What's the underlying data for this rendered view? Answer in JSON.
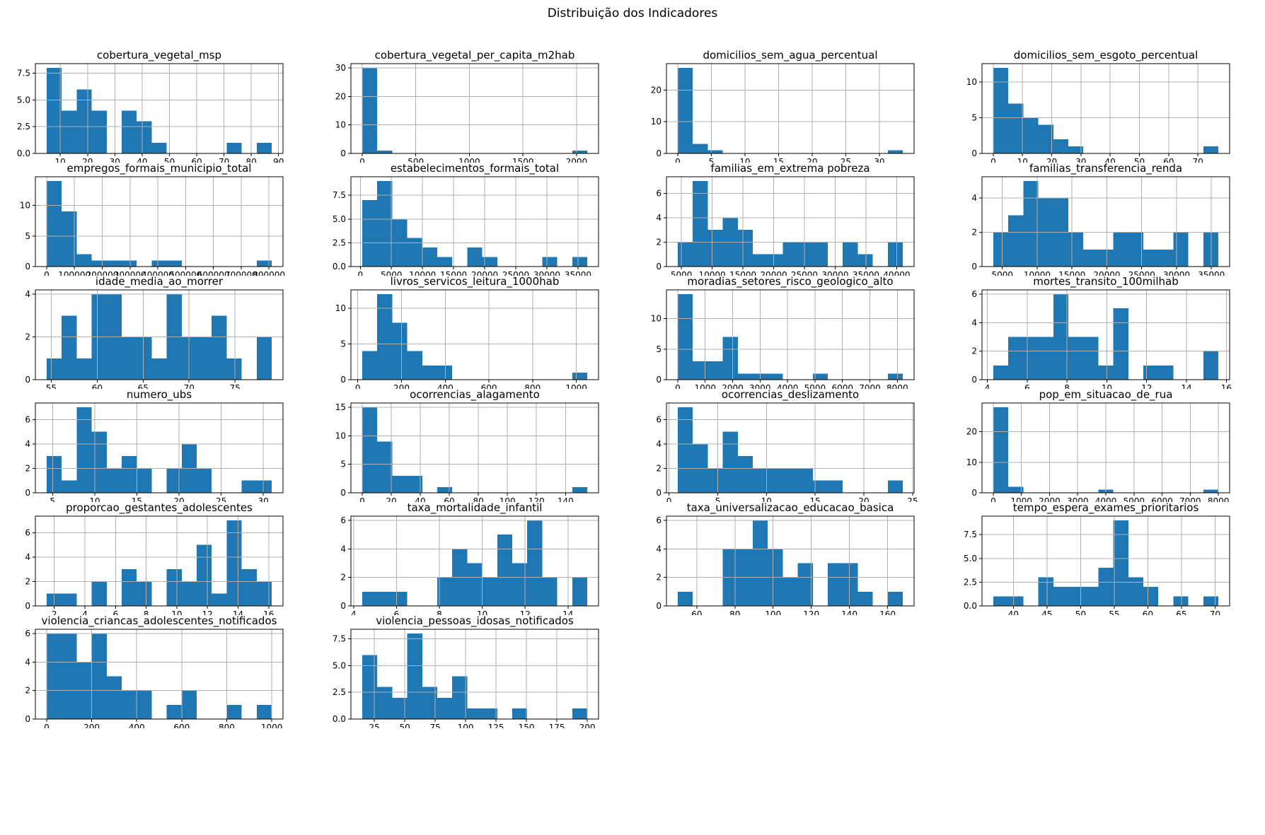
{
  "page": {
    "suptitle": "Distribuição dos Indicadores"
  },
  "style": {
    "bar_color": "#1f77b4",
    "grid_color": "#b0b0b0",
    "spine_color": "#000000"
  },
  "chart_data": [
    {
      "type": "histogram",
      "title": "cobertura_vegetal_msp",
      "x_start": 5,
      "x_end": 87.5,
      "heights": [
        8,
        4,
        6,
        4,
        0,
        4,
        3,
        1,
        0,
        0,
        0,
        0,
        1,
        0,
        1
      ],
      "xticks": [
        10,
        20,
        30,
        40,
        50,
        60,
        70,
        80,
        90
      ],
      "ytick_values": [
        0,
        2.5,
        5,
        7.5
      ],
      "ytick_labels": [
        "0.0",
        "2.5",
        "5.0",
        "7.5"
      ]
    },
    {
      "type": "histogram",
      "title": "cobertura_vegetal_per_capita_m2hab",
      "x_start": 0,
      "x_end": 2100,
      "heights": [
        30,
        1,
        0,
        0,
        0,
        0,
        0,
        0,
        0,
        0,
        0,
        0,
        0,
        0,
        1
      ],
      "xticks": [
        0,
        500,
        1000,
        1500,
        2000
      ],
      "ytick_values": [
        0,
        10,
        20,
        30
      ],
      "ytick_labels": [
        "0",
        "10",
        "20",
        "30"
      ]
    },
    {
      "type": "histogram",
      "title": "domicilios_sem_agua_percentual",
      "x_start": 0,
      "x_end": 33.5,
      "heights": [
        27,
        3,
        1,
        0,
        0,
        0,
        0,
        0,
        0,
        0,
        0,
        0,
        0,
        0,
        1
      ],
      "xticks": [
        0,
        5,
        10,
        15,
        20,
        25,
        30
      ],
      "ytick_values": [
        0,
        10,
        20
      ],
      "ytick_labels": [
        "0",
        "10",
        "20"
      ]
    },
    {
      "type": "histogram",
      "title": "domicilios_sem_esgoto_percentual",
      "x_start": 0,
      "x_end": 77,
      "heights": [
        12,
        7,
        5,
        4,
        2,
        1,
        0,
        0,
        0,
        0,
        0,
        0,
        0,
        0,
        1
      ],
      "xticks": [
        0,
        10,
        20,
        30,
        40,
        50,
        60,
        70
      ],
      "ytick_values": [
        0,
        5,
        10
      ],
      "ytick_labels": [
        "0",
        "5",
        "10"
      ]
    },
    {
      "type": "histogram",
      "title": "empregos_formais_municipio_total",
      "x_start": 0,
      "x_end": 810000,
      "heights": [
        14,
        9,
        2,
        1,
        1,
        1,
        0,
        1,
        1,
        0,
        0,
        0,
        0,
        0,
        1
      ],
      "xticks": [
        0,
        100000,
        200000,
        300000,
        400000,
        500000,
        600000,
        700000,
        800000
      ],
      "ytick_values": [
        0,
        5,
        10
      ],
      "ytick_labels": [
        "0",
        "5",
        "10"
      ]
    },
    {
      "type": "histogram",
      "title": "estabelecimentos_formais_total",
      "x_start": 300,
      "x_end": 36500,
      "heights": [
        7,
        9,
        5,
        3,
        2,
        1,
        0,
        2,
        1,
        0,
        0,
        0,
        1,
        0,
        1
      ],
      "xticks": [
        0,
        5000,
        10000,
        15000,
        20000,
        25000,
        30000,
        35000
      ],
      "ytick_values": [
        0,
        2.5,
        5,
        7.5
      ],
      "ytick_labels": [
        "0.0",
        "2.5",
        "5.0",
        "7.5"
      ]
    },
    {
      "type": "histogram",
      "title": "familias_em_extrema pobreza",
      "x_start": 4400,
      "x_end": 41000,
      "heights": [
        2,
        7,
        3,
        4,
        3,
        1,
        1,
        2,
        2,
        2,
        0,
        2,
        1,
        0,
        2
      ],
      "xticks": [
        5000,
        10000,
        15000,
        20000,
        25000,
        30000,
        35000,
        40000
      ],
      "ytick_values": [
        0,
        2,
        4,
        6
      ],
      "ytick_labels": [
        "0",
        "2",
        "4",
        "6"
      ]
    },
    {
      "type": "histogram",
      "title": "familias_transferencia_renda",
      "x_start": 3700,
      "x_end": 36000,
      "heights": [
        2,
        3,
        5,
        4,
        4,
        2,
        1,
        1,
        2,
        2,
        1,
        1,
        2,
        0,
        2
      ],
      "xticks": [
        5000,
        10000,
        15000,
        20000,
        25000,
        30000,
        35000
      ],
      "ytick_values": [
        0,
        2,
        4
      ],
      "ytick_labels": [
        "0",
        "2",
        "4"
      ]
    },
    {
      "type": "histogram",
      "title": "idade_media_ao_morrer",
      "x_start": 54.5,
      "x_end": 79,
      "heights": [
        1,
        3,
        1,
        4,
        4,
        2,
        2,
        1,
        4,
        2,
        2,
        3,
        1,
        0,
        2
      ],
      "xticks": [
        55,
        60,
        65,
        70,
        75
      ],
      "ytick_values": [
        0,
        2,
        4
      ],
      "ytick_labels": [
        "0",
        "2",
        "4"
      ]
    },
    {
      "type": "histogram",
      "title": "livros_servicos_leitura_1000hab",
      "x_start": 20,
      "x_end": 1050,
      "heights": [
        4,
        12,
        8,
        4,
        2,
        2,
        0,
        0,
        0,
        0,
        0,
        0,
        0,
        0,
        1
      ],
      "xticks": [
        0,
        200,
        400,
        600,
        800,
        1000
      ],
      "ytick_values": [
        0,
        5,
        10
      ],
      "ytick_labels": [
        "0",
        "5",
        "10"
      ]
    },
    {
      "type": "histogram",
      "title": "moradias_setores_risco_geologico_alto",
      "x_start": 0,
      "x_end": 8200,
      "heights": [
        14,
        3,
        3,
        7,
        1,
        1,
        1,
        0,
        0,
        1,
        0,
        0,
        0,
        0,
        1
      ],
      "xticks": [
        0,
        1000,
        2000,
        3000,
        4000,
        5000,
        6000,
        7000,
        8000
      ],
      "ytick_values": [
        0,
        5,
        10
      ],
      "ytick_labels": [
        "0",
        "5",
        "10"
      ]
    },
    {
      "type": "histogram",
      "title": "mortes_transito_100milhab",
      "x_start": 4.3,
      "x_end": 15.6,
      "heights": [
        1,
        3,
        3,
        3,
        6,
        3,
        3,
        1,
        5,
        0,
        1,
        1,
        0,
        0,
        2
      ],
      "xticks": [
        4,
        6,
        8,
        10,
        12,
        14,
        16
      ],
      "ytick_values": [
        0,
        2,
        4,
        6
      ],
      "ytick_labels": [
        "0",
        "2",
        "4",
        "6"
      ]
    },
    {
      "type": "histogram",
      "title": "numero_ubs",
      "x_start": 4.3,
      "x_end": 31,
      "heights": [
        3,
        1,
        7,
        5,
        2,
        3,
        2,
        0,
        2,
        4,
        2,
        0,
        0,
        1,
        1
      ],
      "xticks": [
        5,
        10,
        15,
        20,
        25,
        30
      ],
      "ytick_values": [
        0,
        2,
        4,
        6
      ],
      "ytick_labels": [
        "0",
        "2",
        "4",
        "6"
      ]
    },
    {
      "type": "histogram",
      "title": "ocorrencias_alagamento",
      "x_start": 0,
      "x_end": 155,
      "heights": [
        15,
        9,
        3,
        3,
        0,
        1,
        0,
        0,
        0,
        0,
        0,
        0,
        0,
        0,
        1
      ],
      "xticks": [
        0,
        20,
        40,
        60,
        80,
        100,
        120,
        140
      ],
      "ytick_values": [
        0,
        5,
        10,
        15
      ],
      "ytick_labels": [
        "0",
        "5",
        "10",
        "15"
      ]
    },
    {
      "type": "histogram",
      "title": "ocorrencias_deslizamento",
      "x_start": 0.9,
      "x_end": 24,
      "heights": [
        7,
        4,
        2,
        5,
        3,
        2,
        2,
        2,
        2,
        1,
        1,
        0,
        0,
        0,
        1
      ],
      "xticks": [
        0,
        5,
        10,
        15,
        20,
        25
      ],
      "ytick_values": [
        0,
        2,
        4,
        6
      ],
      "ytick_labels": [
        "0",
        "2",
        "4",
        "6"
      ]
    },
    {
      "type": "histogram",
      "title": "pop_em_situacao_de_rua",
      "x_start": 0,
      "x_end": 8000,
      "heights": [
        28,
        2,
        0,
        0,
        0,
        0,
        0,
        1,
        0,
        0,
        0,
        0,
        0,
        0,
        1
      ],
      "xticks": [
        0,
        1000,
        2000,
        3000,
        4000,
        5000,
        6000,
        7000,
        8000
      ],
      "ytick_values": [
        0,
        10,
        20
      ],
      "ytick_labels": [
        "0",
        "10",
        "20"
      ]
    },
    {
      "type": "histogram",
      "title": "proporcao_gestantes_adolescentes",
      "x_start": 1.5,
      "x_end": 16.2,
      "heights": [
        1,
        1,
        0,
        2,
        0,
        3,
        2,
        0,
        3,
        2,
        5,
        1,
        7,
        3,
        2
      ],
      "xticks": [
        2,
        4,
        6,
        8,
        10,
        12,
        14,
        16
      ],
      "ytick_values": [
        0,
        2,
        4,
        6
      ],
      "ytick_labels": [
        "0",
        "2",
        "4",
        "6"
      ]
    },
    {
      "type": "histogram",
      "title": "taxa_mortalidade_infantil",
      "x_start": 4.4,
      "x_end": 14.9,
      "heights": [
        1,
        1,
        1,
        0,
        0,
        2,
        4,
        3,
        2,
        5,
        3,
        6,
        2,
        0,
        2
      ],
      "xticks": [
        4,
        6,
        8,
        10,
        12,
        14
      ],
      "ytick_values": [
        0,
        2,
        4,
        6
      ],
      "ytick_labels": [
        "0",
        "2",
        "4",
        "6"
      ]
    },
    {
      "type": "histogram",
      "title": "taxa_universalizacao_educacao_basica",
      "x_start": 50,
      "x_end": 168,
      "heights": [
        1,
        0,
        0,
        4,
        4,
        6,
        4,
        2,
        3,
        0,
        3,
        3,
        1,
        0,
        1
      ],
      "xticks": [
        60,
        80,
        100,
        120,
        140,
        160
      ],
      "ytick_values": [
        0,
        2,
        4,
        6
      ],
      "ytick_labels": [
        "0",
        "2",
        "4",
        "6"
      ]
    },
    {
      "type": "histogram",
      "title": "tempo_espera_exames_prioritarios",
      "x_start": 37,
      "x_end": 70.5,
      "heights": [
        1,
        1,
        0,
        3,
        2,
        2,
        2,
        4,
        9,
        3,
        2,
        0,
        1,
        0,
        1
      ],
      "xticks": [
        40,
        45,
        50,
        55,
        60,
        65,
        70
      ],
      "ytick_values": [
        0,
        2.5,
        5,
        7.5
      ],
      "ytick_labels": [
        "0.0",
        "2.5",
        "5.0",
        "7.5"
      ]
    },
    {
      "type": "histogram",
      "title": "violencia_criancas_adolescentes_notificados",
      "x_start": 0,
      "x_end": 1000,
      "heights": [
        6,
        6,
        4,
        6,
        3,
        2,
        2,
        0,
        1,
        2,
        0,
        0,
        1,
        0,
        1
      ],
      "xticks": [
        0,
        200,
        400,
        600,
        800,
        1000
      ],
      "ytick_values": [
        0,
        2,
        4,
        6
      ],
      "ytick_labels": [
        "0",
        "2",
        "4",
        "6"
      ]
    },
    {
      "type": "histogram",
      "title": "violencia_pessoas_idosas_notificados",
      "x_start": 15,
      "x_end": 200,
      "heights": [
        6,
        3,
        2,
        8,
        3,
        2,
        4,
        1,
        1,
        0,
        1,
        0,
        0,
        0,
        1
      ],
      "xticks": [
        25,
        50,
        75,
        100,
        125,
        150,
        175,
        200
      ],
      "ytick_values": [
        0,
        2.5,
        5,
        7.5
      ],
      "ytick_labels": [
        "0.0",
        "2.5",
        "5.0",
        "7.5"
      ]
    }
  ]
}
